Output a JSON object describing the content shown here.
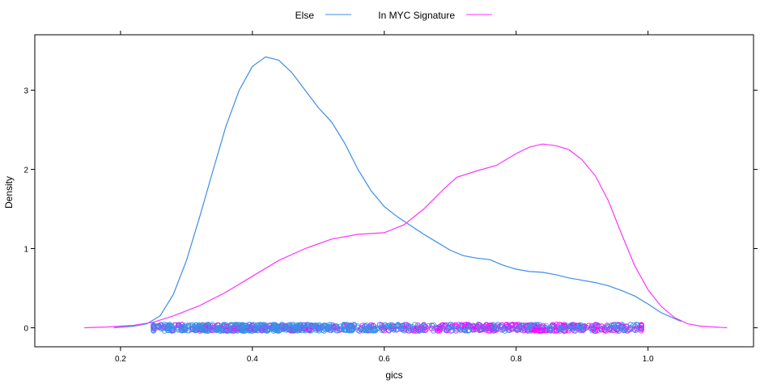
{
  "chart_data": {
    "type": "line",
    "title": "",
    "xlabel": "gics",
    "ylabel": "Density",
    "xlim": [
      0.07,
      1.16
    ],
    "ylim": [
      -0.24,
      3.7
    ],
    "x_ticks": [
      0.2,
      0.4,
      0.6,
      0.8,
      1.0
    ],
    "x_tick_labels": [
      "0.2",
      "0.4",
      "0.6",
      "0.8",
      "1.0"
    ],
    "y_ticks": [
      0,
      1,
      2,
      3
    ],
    "y_tick_labels": [
      "0",
      "1",
      "2",
      "3"
    ],
    "grid": false,
    "legend_position": "top",
    "series": [
      {
        "name": "Else",
        "color": "#3d8de8",
        "x": [
          0.19,
          0.22,
          0.24,
          0.26,
          0.28,
          0.3,
          0.32,
          0.34,
          0.36,
          0.38,
          0.4,
          0.42,
          0.44,
          0.46,
          0.48,
          0.5,
          0.52,
          0.54,
          0.56,
          0.58,
          0.6,
          0.62,
          0.64,
          0.66,
          0.68,
          0.7,
          0.72,
          0.74,
          0.76,
          0.78,
          0.8,
          0.82,
          0.84,
          0.86,
          0.88,
          0.9,
          0.92,
          0.94,
          0.96,
          0.98,
          1.0,
          1.02,
          1.05
        ],
        "y": [
          0.0,
          0.02,
          0.05,
          0.15,
          0.42,
          0.85,
          1.4,
          1.98,
          2.55,
          3.0,
          3.3,
          3.42,
          3.38,
          3.22,
          3.0,
          2.78,
          2.6,
          2.33,
          2.0,
          1.73,
          1.53,
          1.4,
          1.29,
          1.18,
          1.08,
          0.98,
          0.91,
          0.88,
          0.86,
          0.79,
          0.74,
          0.71,
          0.7,
          0.67,
          0.63,
          0.6,
          0.57,
          0.53,
          0.47,
          0.4,
          0.3,
          0.19,
          0.08
        ]
      },
      {
        "name": "In MYC Signature",
        "color": "#ff33ff",
        "x": [
          0.145,
          0.18,
          0.22,
          0.25,
          0.28,
          0.32,
          0.36,
          0.4,
          0.44,
          0.48,
          0.52,
          0.56,
          0.6,
          0.63,
          0.66,
          0.69,
          0.71,
          0.74,
          0.77,
          0.8,
          0.82,
          0.84,
          0.86,
          0.88,
          0.9,
          0.92,
          0.94,
          0.96,
          0.98,
          1.0,
          1.02,
          1.04,
          1.06,
          1.08,
          1.1,
          1.12
        ],
        "y": [
          0.0,
          0.01,
          0.03,
          0.07,
          0.15,
          0.28,
          0.45,
          0.65,
          0.85,
          1.0,
          1.12,
          1.18,
          1.2,
          1.3,
          1.5,
          1.75,
          1.9,
          1.98,
          2.05,
          2.2,
          2.28,
          2.32,
          2.3,
          2.25,
          2.12,
          1.92,
          1.6,
          1.18,
          0.78,
          0.48,
          0.27,
          0.13,
          0.05,
          0.02,
          0.01,
          0.0
        ]
      }
    ],
    "rug_points": {
      "else_color": "#3d8de8",
      "myc_color": "#ff00ff",
      "else_x_range": [
        0.25,
        0.99
      ],
      "myc_x_range": [
        0.25,
        0.99
      ]
    }
  }
}
